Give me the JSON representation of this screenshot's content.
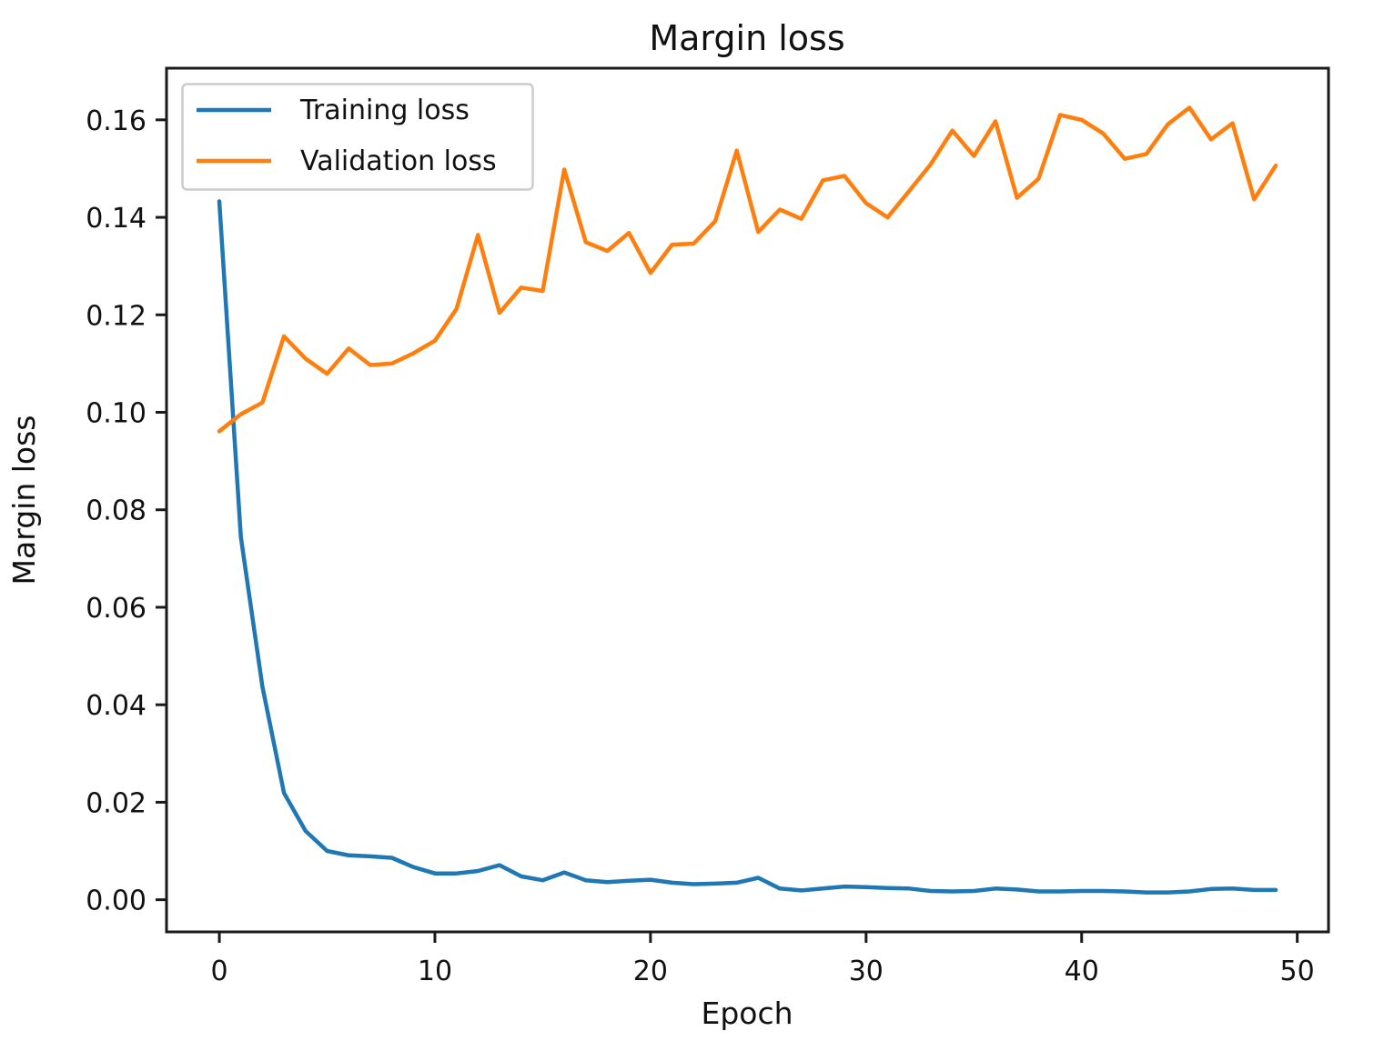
{
  "chart_data": {
    "type": "line",
    "title": "Margin loss",
    "xlabel": "Epoch",
    "ylabel": "Margin loss",
    "grid": false,
    "legend": {
      "position": "upper left",
      "entries": [
        "Training loss",
        "Validation loss"
      ]
    },
    "xlim": [
      -2.45,
      51.45
    ],
    "ylim": [
      -0.0066,
      0.1706
    ],
    "xticks": {
      "values": [
        0,
        10,
        20,
        30,
        40,
        50
      ],
      "labels": [
        "0",
        "10",
        "20",
        "30",
        "40",
        "50"
      ]
    },
    "yticks": {
      "values": [
        0.0,
        0.02,
        0.04,
        0.06,
        0.08,
        0.1,
        0.12,
        0.14,
        0.16
      ],
      "labels": [
        "0.00",
        "0.02",
        "0.04",
        "0.06",
        "0.08",
        "0.10",
        "0.12",
        "0.14",
        "0.16"
      ]
    },
    "x": [
      0,
      1,
      2,
      3,
      4,
      5,
      6,
      7,
      8,
      9,
      10,
      11,
      12,
      13,
      14,
      15,
      16,
      17,
      18,
      19,
      20,
      21,
      22,
      23,
      24,
      25,
      26,
      27,
      28,
      29,
      30,
      31,
      32,
      33,
      34,
      35,
      36,
      37,
      38,
      39,
      40,
      41,
      42,
      43,
      44,
      45,
      46,
      47,
      48,
      49
    ],
    "series": [
      {
        "name": "Training loss",
        "color": "#1f77b4",
        "values": [
          0.1433,
          0.0744,
          0.0437,
          0.0219,
          0.0141,
          0.01,
          0.0091,
          0.0089,
          0.0086,
          0.0067,
          0.0054,
          0.0054,
          0.0059,
          0.0071,
          0.0048,
          0.004,
          0.0056,
          0.004,
          0.0036,
          0.0039,
          0.0041,
          0.0035,
          0.0032,
          0.0033,
          0.0035,
          0.0045,
          0.0023,
          0.0019,
          0.0023,
          0.0027,
          0.0026,
          0.0024,
          0.0023,
          0.0018,
          0.0017,
          0.0018,
          0.0023,
          0.0021,
          0.0017,
          0.0017,
          0.0018,
          0.0018,
          0.0017,
          0.0015,
          0.0015,
          0.0017,
          0.0022,
          0.0023,
          0.002,
          0.002
        ]
      },
      {
        "name": "Validation loss",
        "color": "#ff7f0e",
        "values": [
          0.0961,
          0.0996,
          0.102,
          0.1156,
          0.111,
          0.1079,
          0.1131,
          0.1097,
          0.11,
          0.1121,
          0.1147,
          0.1212,
          0.1364,
          0.1204,
          0.1256,
          0.1249,
          0.1498,
          0.1349,
          0.1331,
          0.1368,
          0.1286,
          0.1344,
          0.1346,
          0.1392,
          0.1537,
          0.137,
          0.1416,
          0.1397,
          0.1476,
          0.1485,
          0.1429,
          0.14,
          0.1454,
          0.1509,
          0.1578,
          0.1526,
          0.1597,
          0.144,
          0.1479,
          0.161,
          0.16,
          0.1572,
          0.152,
          0.153,
          0.1591,
          0.1625,
          0.156,
          0.1593,
          0.1437,
          0.1506
        ]
      }
    ]
  }
}
